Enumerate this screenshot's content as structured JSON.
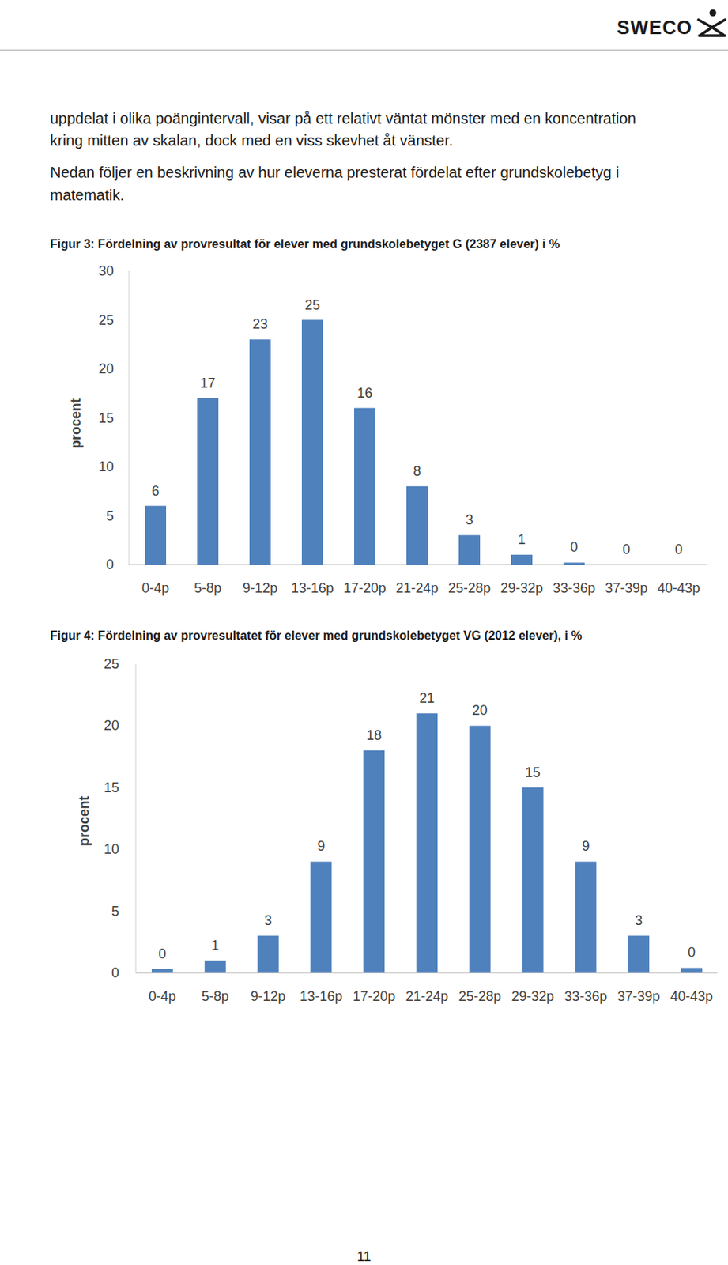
{
  "header": {
    "logo": "SWECO"
  },
  "paragraphs": [
    [
      "uppdelat i olika poängintervall, visar på ett relativt väntat mönster med en koncentration",
      "kring mitten av skalan, dock med en viss skevhet åt vänster."
    ],
    [
      "Nedan följer en beskrivning av hur eleverna presterat fördelat efter grundskolebetyg i",
      "matematik."
    ]
  ],
  "chart_data": [
    {
      "type": "bar",
      "title": "Figur 3: Fördelning av provresultat för elever med grundskolebetyget G (2387 elever) i %",
      "y_label": "procent",
      "categories": [
        "0-4p",
        "5-8p",
        "9-12p",
        "13-16p",
        "17-20p",
        "21-24p",
        "25-28p",
        "29-32p",
        "33-36p",
        "37-39p",
        "40-43p"
      ],
      "values": [
        6,
        17,
        23,
        25,
        16,
        8,
        3,
        1,
        0.2,
        0,
        0
      ],
      "value_labels": [
        "6",
        "17",
        "23",
        "25",
        "16",
        "8",
        "3",
        "1",
        "0",
        "0",
        "0"
      ],
      "color": "#4f81bd",
      "ylim": [
        0,
        30
      ],
      "yticks": [
        0,
        5,
        10,
        15,
        20,
        25,
        30
      ],
      "grid": false,
      "data_labels": true
    },
    {
      "type": "bar",
      "title": "Figur 4: Fördelning av provresultatet för elever med grundskolebetyget VG (2012 elever), i %",
      "y_label": "procent",
      "categories": [
        "0-4p",
        "5-8p",
        "9-12p",
        "13-16p",
        "17-20p",
        "21-24p",
        "25-28p",
        "29-32p",
        "33-36p",
        "37-39p",
        "40-43p"
      ],
      "values": [
        0.3,
        1,
        3,
        9,
        18,
        21,
        20,
        15,
        9,
        3,
        0.4
      ],
      "value_labels": [
        "0",
        "1",
        "3",
        "9",
        "18",
        "21",
        "20",
        "15",
        "9",
        "3",
        "0"
      ],
      "color": "#4f81bd",
      "ylim": [
        0,
        25
      ],
      "yticks": [
        0,
        5,
        10,
        15,
        20,
        25
      ],
      "grid": false,
      "data_labels": true
    }
  ],
  "footer": {
    "page": "11"
  }
}
